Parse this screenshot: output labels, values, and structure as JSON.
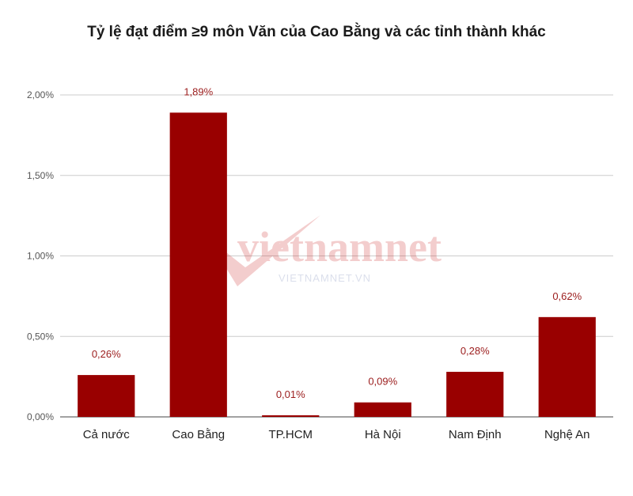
{
  "chart_data": {
    "type": "bar",
    "title": "Tỷ lệ đạt điểm ≥9 môn Văn của Cao Bằng và các tỉnh thành khác",
    "categories": [
      "Cả nước",
      "Cao Bằng",
      "TP.HCM",
      "Hà Nội",
      "Nam Định",
      "Nghệ An"
    ],
    "values": [
      0.26,
      1.89,
      0.01,
      0.09,
      0.28,
      0.62
    ],
    "data_labels": [
      "0,26%",
      "1,89%",
      "0,01%",
      "0,09%",
      "0,28%",
      "0,62%"
    ],
    "ylim": [
      0,
      2.0
    ],
    "yticks": [
      {
        "value": 0,
        "label": "0,00%"
      },
      {
        "value": 0.5,
        "label": "0,50%"
      },
      {
        "value": 1.0,
        "label": "1,00%"
      },
      {
        "value": 1.5,
        "label": "1,50%"
      },
      {
        "value": 2.0,
        "label": "2,00%"
      }
    ],
    "grid": true,
    "bar_color": "#990000",
    "label_color": "#9b1c1c"
  },
  "watermark": {
    "logo_word": "vietnamnet",
    "site": "VIETNAMNET.VN"
  }
}
